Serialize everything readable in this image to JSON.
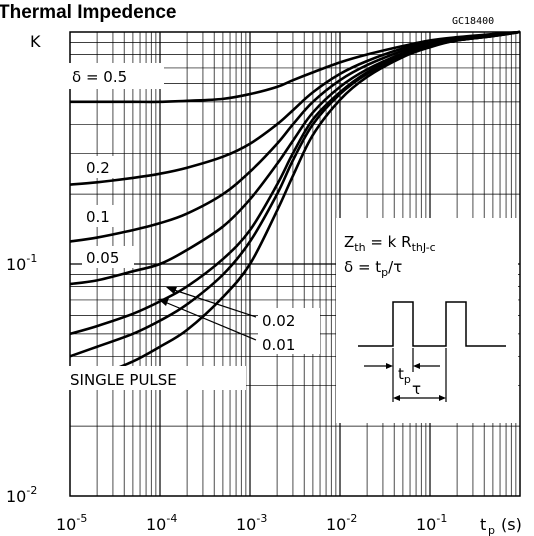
{
  "chart_data": {
    "type": "line",
    "title": "Thermal Impedence",
    "figure_code": "GC18400",
    "ylabel": "K",
    "xlabel": "t",
    "xlabel_sub": "p",
    "xlabel_unit": "(s)",
    "x_scale": "log",
    "y_scale": "log",
    "xlim": [
      1e-05,
      1
    ],
    "ylim": [
      0.01,
      1
    ],
    "grid": true,
    "x_ticks": [
      {
        "base": "10",
        "exp": "-5"
      },
      {
        "base": "10",
        "exp": "-4"
      },
      {
        "base": "10",
        "exp": "-3"
      },
      {
        "base": "10",
        "exp": "-2"
      },
      {
        "base": "10",
        "exp": "-1"
      }
    ],
    "y_ticks": [
      {
        "base": "10",
        "exp": "-2",
        "value": 0.01
      },
      {
        "base": "10",
        "exp": "-1",
        "value": 0.1
      }
    ],
    "x": [
      1e-05,
      2e-05,
      5e-05,
      0.0001,
      0.0002,
      0.0005,
      0.001,
      0.002,
      0.003,
      0.005,
      0.01,
      0.02,
      0.05,
      0.1,
      0.2,
      0.5,
      1
    ],
    "series": [
      {
        "name": "δ = 0.5",
        "values": [
          0.5,
          0.5,
          0.5,
          0.5,
          0.505,
          0.515,
          0.54,
          0.58,
          0.62,
          0.67,
          0.74,
          0.8,
          0.87,
          0.92,
          0.95,
          0.98,
          1.0
        ]
      },
      {
        "name": "0.2",
        "values": [
          0.22,
          0.225,
          0.235,
          0.245,
          0.26,
          0.29,
          0.33,
          0.4,
          0.46,
          0.55,
          0.66,
          0.75,
          0.85,
          0.9,
          0.94,
          0.975,
          1.0
        ]
      },
      {
        "name": "0.1",
        "values": [
          0.125,
          0.13,
          0.14,
          0.15,
          0.165,
          0.2,
          0.25,
          0.33,
          0.4,
          0.5,
          0.62,
          0.72,
          0.83,
          0.89,
          0.93,
          0.97,
          1.0
        ]
      },
      {
        "name": "0.05",
        "values": [
          0.082,
          0.085,
          0.093,
          0.1,
          0.115,
          0.145,
          0.19,
          0.27,
          0.34,
          0.45,
          0.58,
          0.69,
          0.81,
          0.88,
          0.93,
          0.97,
          1.0
        ]
      },
      {
        "name": "0.02",
        "values": [
          0.05,
          0.054,
          0.061,
          0.069,
          0.08,
          0.105,
          0.14,
          0.22,
          0.3,
          0.42,
          0.55,
          0.67,
          0.8,
          0.87,
          0.92,
          0.96,
          1.0
        ]
      },
      {
        "name": "0.01",
        "values": [
          0.04,
          0.044,
          0.05,
          0.057,
          0.067,
          0.09,
          0.125,
          0.2,
          0.28,
          0.4,
          0.54,
          0.66,
          0.79,
          0.87,
          0.92,
          0.96,
          1.0
        ]
      },
      {
        "name": "SINGLE PULSE",
        "values": [
          0.03,
          0.033,
          0.038,
          0.044,
          0.052,
          0.072,
          0.1,
          0.17,
          0.24,
          0.36,
          0.51,
          0.64,
          0.78,
          0.86,
          0.92,
          0.96,
          1.0
        ]
      }
    ],
    "curve_labels": {
      "d05_prefix": "δ = ",
      "d05_value": "0.5",
      "d02": "0.2",
      "d01": "0.1",
      "d005": "0.05",
      "d002": "0.02",
      "d001": "0.01",
      "single": "SINGLE PULSE"
    },
    "annotation": {
      "zth_lhs": "Z",
      "zth_sub": "th",
      "zth_eq": " = k R",
      "zth_rsub": "thJ-c",
      "delta_eq": "δ = t",
      "delta_sub": "p",
      "delta_rest": "/τ",
      "tp_label": "t",
      "tp_sub": "p",
      "tau_label": "τ"
    }
  }
}
